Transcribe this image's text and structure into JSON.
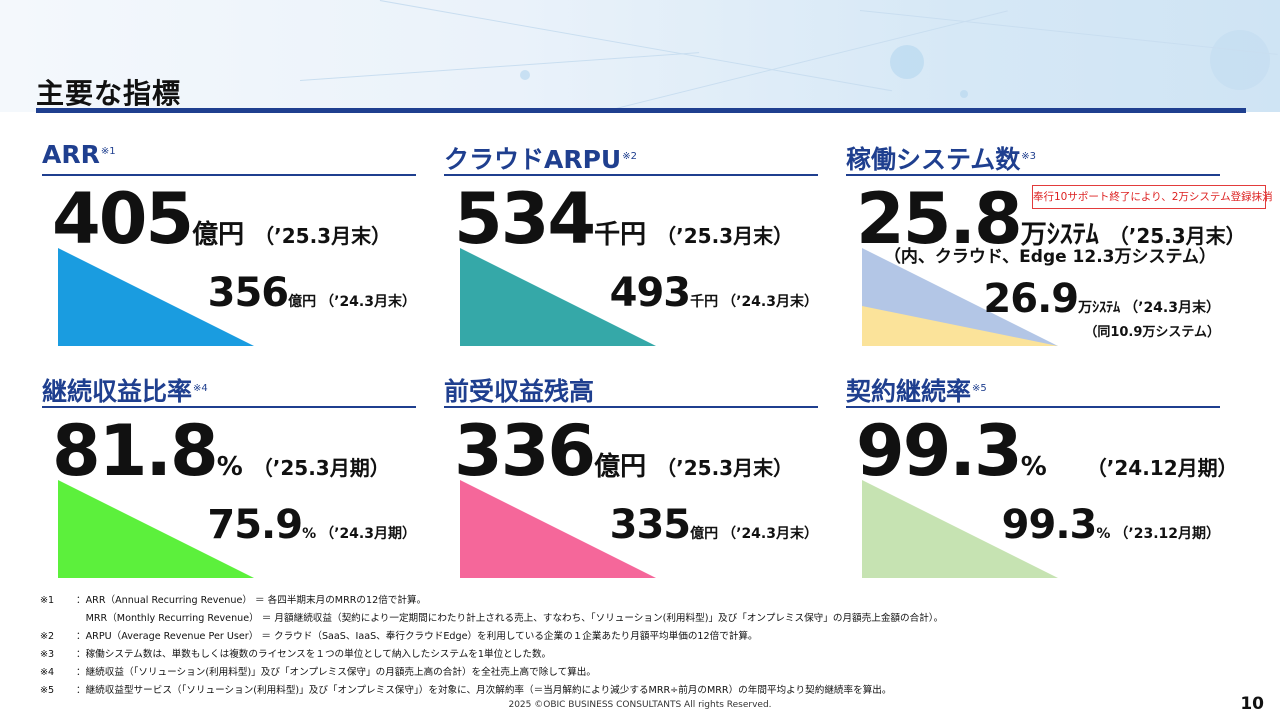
{
  "title": "主要な指標",
  "panels": [
    {
      "title": "ARR",
      "note": "※1",
      "current": {
        "value": "405",
        "unit": "億円",
        "period": "（’25.3月末）"
      },
      "previous": {
        "value": "356",
        "unit": "億円",
        "period": "（’24.3月末）"
      },
      "color": "#1a9ce0"
    },
    {
      "title": "クラウドARPU",
      "note": "※2",
      "current": {
        "value": "534",
        "unit": "千円",
        "period": "（’25.3月末）"
      },
      "previous": {
        "value": "493",
        "unit": "千円",
        "period": "（’24.3月末）"
      },
      "color": "#35a8a8"
    },
    {
      "title": "稼働システム数",
      "note": "※3",
      "current": {
        "value": "25.8",
        "unit": "万ｼｽﾃﾑ",
        "period": "（’25.3月末）"
      },
      "current_sub": "（内、クラウド、Edge  12.3万システム）",
      "previous": {
        "value": "26.9",
        "unit": "万ｼｽﾃﾑ",
        "period": "（’24.3月末）"
      },
      "previous_sub": "（同10.9万システム）",
      "notice": "奉行10サポート終了により、2万システム登録抹消",
      "color": "#b3c6e6",
      "color2": "#fbe39a"
    },
    {
      "title": "継続収益比率",
      "note": "※4",
      "current": {
        "value": "81.8",
        "unit": "%",
        "period": "（’25.3月期）"
      },
      "previous": {
        "value": "75.9",
        "unit": "%",
        "period": "（’24.3月期）"
      },
      "color": "#5cf03c"
    },
    {
      "title": "前受収益残高",
      "note": "",
      "current": {
        "value": "336",
        "unit": "億円",
        "period": "（’25.3月末）"
      },
      "previous": {
        "value": "335",
        "unit": "億円",
        "period": "（’24.3月末）"
      },
      "color": "#f5679a"
    },
    {
      "title": "契約継続率",
      "note": "※5",
      "current": {
        "value": "99.3",
        "unit": "%",
        "period": "（’24.12月期）"
      },
      "previous": {
        "value": "99.3",
        "unit": "%",
        "period": "（’23.12月期）"
      },
      "color": "#c6e3b2"
    }
  ],
  "footnotes": [
    {
      "key": "※1",
      "text": "：ARR（Annual Recurring Revenue） ＝ 各四半期末月のMRRの12倍で計算。"
    },
    {
      "key": "",
      "text": "　MRR（Monthly Recurring Revenue） ＝ 月額継続収益（契約により一定期間にわたり計上される売上、すなわち、「ソリューション(利用料型)」及び「オンプレミス保守」の月額売上金額の合計）。"
    },
    {
      "key": "※2",
      "text": "：ARPU（Average Revenue Per User） ＝ クラウド（SaaS、IaaS、奉行クラウドEdge）を利用している企業の１企業あたり月額平均単価の12倍で計算。"
    },
    {
      "key": "※3",
      "text": "：稼働システム数は、単数もしくは複数のライセンスを１つの単位として納入したシステムを1単位とした数。"
    },
    {
      "key": "※4",
      "text": "：継続収益（「ソリューション(利用料型)」及び「オンプレミス保守」の月額売上高の合計）を全社売上高で除して算出。"
    },
    {
      "key": "※5",
      "text": "：継続収益型サービス（「ソリューション(利用料型)」及び「オンプレミス保守」）を対象に、月次解約率（＝当月解約により減少するMRR÷前月のMRR）の年間平均より契約継続率を算出。"
    }
  ],
  "copyright": "2025 ©OBIC BUSINESS CONSULTANTS All rights Reserved.",
  "page_number": "10"
}
